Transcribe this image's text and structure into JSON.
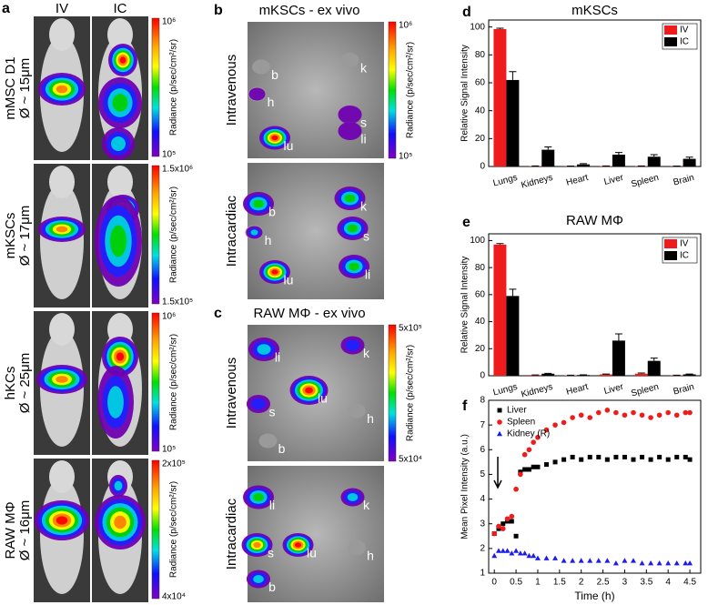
{
  "panel_a": {
    "letter": "a",
    "columns": [
      "IV",
      "IC"
    ],
    "scale_label": "Radiance (p/sec/cm²/sr)",
    "rows": [
      {
        "cell": "mMSC D1",
        "size": "Ø ~ 15μm",
        "scale_max": "10⁶",
        "scale_min": "10⁵"
      },
      {
        "cell": "mKSCs",
        "size": "Ø ~ 17μm",
        "scale_max": "1.5x10⁶",
        "scale_min": "1.5x10⁵"
      },
      {
        "cell": "hKCs",
        "size": "Ø ~ 25μm",
        "scale_max": "10⁶",
        "scale_min": "10⁵"
      },
      {
        "cell": "RAW MΦ",
        "size": "Ø ~ 16μm",
        "scale_max": "2x10⁵",
        "scale_min": "4x10⁴"
      }
    ]
  },
  "panel_b": {
    "letter": "b",
    "title": "mKSCs - ex vivo",
    "scale_max": "10⁶",
    "scale_min": "10⁵",
    "scale_label": "Radiance (p/sec/cm²/sr)",
    "images": [
      {
        "route": "Intravenous",
        "organs": [
          "b",
          "k",
          "h",
          "s",
          "lu",
          "li"
        ]
      },
      {
        "route": "Intracardiac",
        "organs": [
          "b",
          "k",
          "h",
          "s",
          "lu",
          "li"
        ]
      }
    ]
  },
  "panel_c": {
    "letter": "c",
    "title": "RAW MΦ - ex vivo",
    "scale_max": "5x10⁵",
    "scale_min": "5x10⁴",
    "scale_label": "Radiance (p/sec/cm²/sr)",
    "images": [
      {
        "route": "Intravenous",
        "organs": [
          "li",
          "k",
          "s",
          "lu",
          "h",
          "b"
        ]
      },
      {
        "route": "Intracardiac",
        "organs": [
          "li",
          "k",
          "s",
          "lu",
          "h",
          "b"
        ]
      }
    ]
  },
  "chart_data": [
    {
      "type": "bar",
      "letter": "d",
      "title": "mKSCs",
      "y_label": "Relative Signal Intensity",
      "categories": [
        "Lungs",
        "Kidneys",
        "Heart",
        "Liver",
        "Spleen",
        "Brain"
      ],
      "series": [
        {
          "name": "IV",
          "color": "#ee1c1c",
          "values": [
            98.5,
            0.3,
            0.2,
            0.3,
            0.3,
            0.2
          ],
          "errors": [
            0.6,
            0.1,
            0.1,
            0.1,
            0.1,
            0.1
          ]
        },
        {
          "name": "IC",
          "color": "#000000",
          "values": [
            62,
            12,
            1.5,
            8.5,
            7,
            5.5
          ],
          "errors": [
            6,
            2,
            0.5,
            1.5,
            1.5,
            1.2
          ]
        }
      ],
      "ylim": [
        0,
        105
      ],
      "yticks": [
        0,
        20,
        40,
        60,
        80,
        100
      ],
      "legend": "upper-right"
    },
    {
      "type": "bar",
      "letter": "e",
      "title": "RAW MΦ",
      "y_label": "Relative Signal Intensity",
      "categories": [
        "Lungs",
        "Kidneys",
        "Heart",
        "Liver",
        "Spleen",
        "Brain"
      ],
      "series": [
        {
          "name": "IV",
          "color": "#ee1c1c",
          "values": [
            97,
            0.5,
            0.3,
            1,
            1.5,
            0.3
          ],
          "errors": [
            0.8,
            0.1,
            0.1,
            0.3,
            0.5,
            0.1
          ]
        },
        {
          "name": "IC",
          "color": "#000000",
          "values": [
            59,
            1.5,
            0.5,
            26,
            11,
            1
          ],
          "errors": [
            5,
            0.3,
            0.2,
            5,
            2,
            0.3
          ]
        }
      ],
      "ylim": [
        0,
        105
      ],
      "yticks": [
        0,
        20,
        40,
        60,
        80,
        100
      ],
      "legend": "upper-right"
    },
    {
      "type": "scatter",
      "letter": "f",
      "x_label": "Time (h)",
      "y_label": "Mean Pixel Intensity (a.u.)",
      "x": [
        0,
        0.1,
        0.2,
        0.3,
        0.4,
        0.5,
        0.6,
        0.7,
        0.8,
        0.9,
        1.0,
        1.2,
        1.4,
        1.6,
        1.8,
        2.0,
        2.2,
        2.4,
        2.6,
        2.8,
        3.0,
        3.2,
        3.4,
        3.6,
        3.8,
        4.0,
        4.2,
        4.4,
        4.5
      ],
      "series": [
        {
          "name": "Liver",
          "color": "#000000",
          "marker": "square",
          "values": [
            2.6,
            2.8,
            3.0,
            3.1,
            3.1,
            2.5,
            5.1,
            5.2,
            5.2,
            5.3,
            5.3,
            5.4,
            5.5,
            5.6,
            5.7,
            5.6,
            5.7,
            5.7,
            5.6,
            5.7,
            5.7,
            5.6,
            5.7,
            5.6,
            5.7,
            5.6,
            5.7,
            5.7,
            5.6
          ]
        },
        {
          "name": "Spleen",
          "color": "#ee1c1c",
          "marker": "circle",
          "values": [
            2.6,
            2.9,
            2.8,
            3.2,
            3.3,
            4.4,
            5.0,
            5.8,
            6.0,
            6.3,
            6.5,
            6.8,
            7.0,
            7.1,
            7.3,
            7.4,
            7.3,
            7.5,
            7.6,
            7.5,
            7.4,
            7.5,
            7.4,
            7.3,
            7.4,
            7.5,
            7.4,
            7.5,
            7.5
          ]
        },
        {
          "name": "Kidney (R)",
          "color": "#1c1cee",
          "marker": "triangle",
          "values": [
            1.7,
            1.9,
            1.9,
            1.9,
            1.8,
            1.9,
            1.8,
            1.8,
            1.7,
            1.7,
            1.6,
            1.6,
            1.6,
            1.5,
            1.5,
            1.5,
            1.5,
            1.5,
            1.5,
            1.4,
            1.5,
            1.5,
            1.4,
            1.4,
            1.4,
            1.4,
            1.4,
            1.4,
            1.4
          ]
        }
      ],
      "xlim": [
        -0.13,
        4.75
      ],
      "xticks": [
        0,
        0.5,
        1,
        1.5,
        2,
        2.5,
        3,
        3.5,
        4,
        4.5
      ],
      "ylim": [
        1,
        8
      ],
      "yticks": [
        1,
        2,
        3,
        4,
        5,
        6,
        7,
        8
      ],
      "legend": "upper-left"
    }
  ]
}
